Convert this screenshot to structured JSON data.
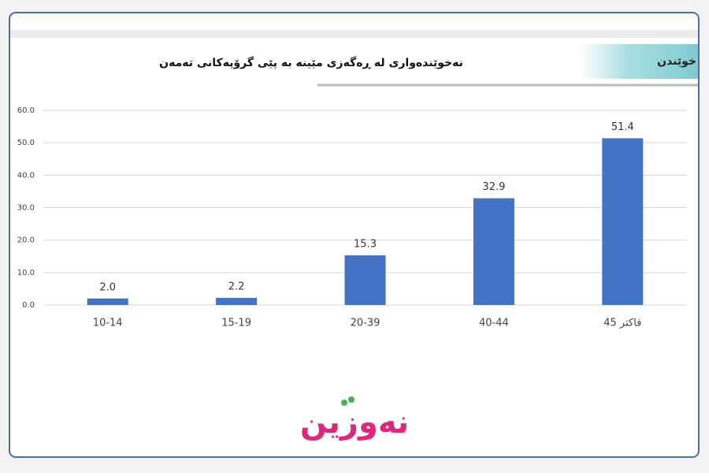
{
  "tab_label": "خوێندن",
  "logo": "نەوزین",
  "chart_data": {
    "type": "bar",
    "title": "نەخوێندەواری لە ڕەگەزی مێینە بە پێی گرۆپەکانی تەمەن",
    "categories": [
      "10-14",
      "15-19",
      "20-39",
      "40-44",
      "45 فاكتر"
    ],
    "values": [
      2.0,
      2.2,
      15.3,
      32.9,
      51.4
    ],
    "value_labels": [
      "2.0",
      "2.2",
      "15.3",
      "32.9",
      "51.4"
    ],
    "color": "#4472c4",
    "ylim": [
      0,
      60
    ],
    "yticks": [
      {
        "value": 0,
        "label": "0.0"
      },
      {
        "value": 10,
        "label": "10.0"
      },
      {
        "value": 20,
        "label": "20.0"
      },
      {
        "value": 30,
        "label": "30.0"
      },
      {
        "value": 40,
        "label": "40.0"
      },
      {
        "value": 50,
        "label": "50.0"
      },
      {
        "value": 60,
        "label": "60.0"
      }
    ],
    "grid": true
  }
}
